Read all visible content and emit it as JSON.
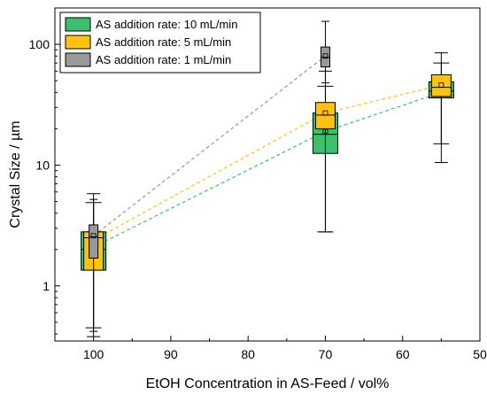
{
  "chart_data": {
    "type": "box",
    "xlabel": "EtOH Concentration in AS-Feed / vol%",
    "ylabel": "Crystal Size / µm",
    "xlim": [
      105,
      50
    ],
    "x_reversed": true,
    "ylim": [
      0.35,
      200
    ],
    "y_scale": "log",
    "x_ticks": [
      100,
      90,
      80,
      70,
      60,
      50
    ],
    "y_ticks": [
      1,
      10,
      100
    ],
    "legend_position": "top-left",
    "series": [
      {
        "name": "AS addition rate: 10 mL/min",
        "color": "#3dbf6e",
        "boxes": [
          {
            "x": 100,
            "whisker_low": 0.45,
            "q1": 1.35,
            "median": 2.0,
            "q3": 2.8,
            "whisker_high": 4.9,
            "mean": 2.1
          },
          {
            "x": 70,
            "whisker_low": 2.8,
            "q1": 12.5,
            "median": 18.0,
            "q3": 27.0,
            "whisker_high": 45.0,
            "mean": 19.0
          },
          {
            "x": 55,
            "whisker_low": 15.0,
            "q1": 36.0,
            "median": 41.0,
            "q3": 49.0,
            "whisker_high": 70.0,
            "mean": 40.0
          }
        ]
      },
      {
        "name": "AS addition rate: 5 mL/min",
        "color": "#ffc20e",
        "boxes": [
          {
            "x": 100,
            "whisker_low": 0.38,
            "q1": 1.35,
            "median": 2.5,
            "q3": 2.8,
            "whisker_high": 5.8,
            "mean": 2.4
          },
          {
            "x": 70,
            "whisker_low": 2.8,
            "q1": 20.0,
            "median": 26.0,
            "q3": 33.0,
            "whisker_high": 60.0,
            "mean": 27.0
          },
          {
            "x": 55,
            "whisker_low": 10.5,
            "q1": 37.0,
            "median": 44.0,
            "q3": 56.0,
            "whisker_high": 85.0,
            "mean": 46.0
          }
        ]
      },
      {
        "name": "AS addition rate: 1 mL/min",
        "color": "#999999",
        "boxes": [
          {
            "x": 100,
            "whisker_low": 0.42,
            "q1": 1.7,
            "median": 2.55,
            "q3": 3.2,
            "whisker_high": 5.2,
            "mean": 2.6
          },
          {
            "x": 70,
            "whisker_low": 48.0,
            "q1": 65.0,
            "median": 78.0,
            "q3": 95.0,
            "whisker_high": 155.0,
            "mean": 80.0
          }
        ]
      }
    ]
  }
}
